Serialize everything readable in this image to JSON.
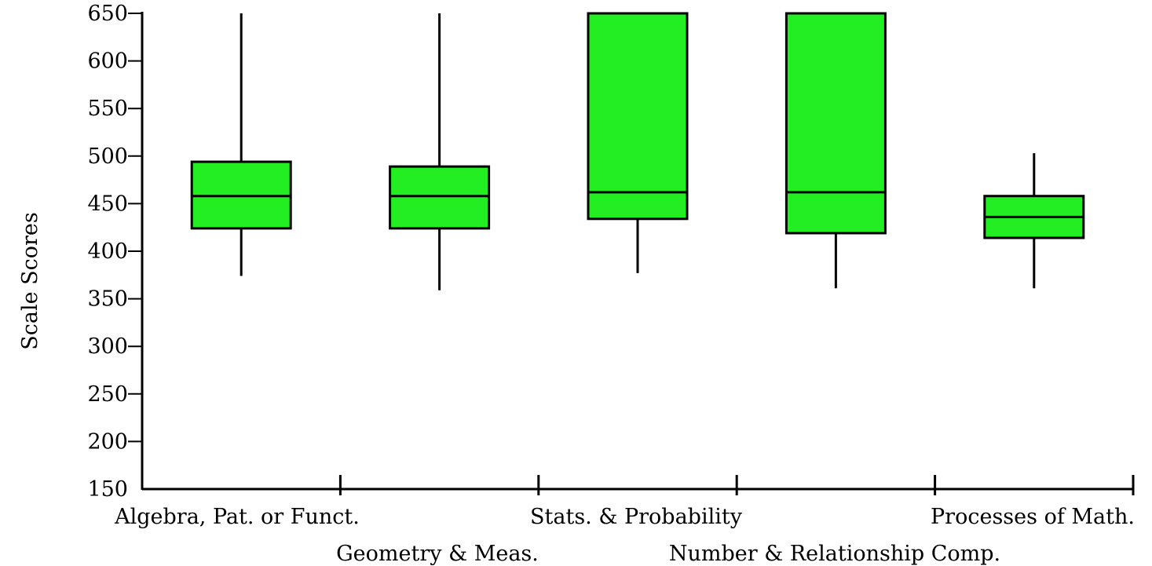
{
  "chart_data": {
    "type": "boxplot",
    "title": "",
    "xlabel": "",
    "ylabel": "Scale Scores",
    "ylim": [
      150,
      650
    ],
    "yticks": [
      "650",
      "600",
      "550",
      "500",
      "450",
      "400",
      "350",
      "300",
      "250",
      "200",
      "150"
    ],
    "grid": false,
    "legend": "none",
    "box_color": "#22ee22",
    "categories": [
      "Algebra, Pat. or Funct.",
      "Geometry & Meas.",
      "Stats. & Probability",
      "Number & Relationship Comp.",
      "Processes of Math."
    ],
    "boxes": [
      {
        "min": 374,
        "q1": 424,
        "median": 458,
        "q3": 494,
        "max": 650
      },
      {
        "min": 359,
        "q1": 424,
        "median": 458,
        "q3": 489,
        "max": 650
      },
      {
        "min": 377,
        "q1": 434,
        "median": 462,
        "q3": 650,
        "max": 650
      },
      {
        "min": 361,
        "q1": 419,
        "median": 462,
        "q3": 650,
        "max": 650
      },
      {
        "min": 361,
        "q1": 414,
        "median": 436,
        "q3": 458,
        "max": 503
      }
    ]
  }
}
